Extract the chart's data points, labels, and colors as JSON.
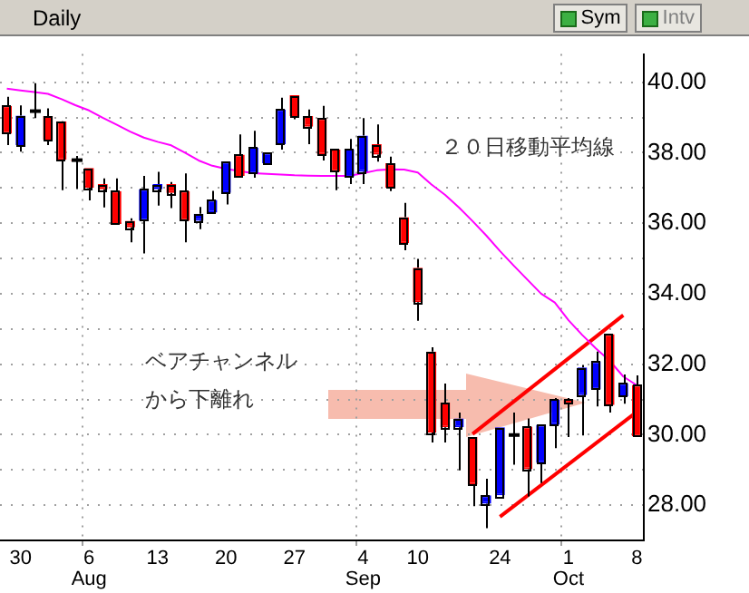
{
  "chart_data": {
    "type": "candlestick",
    "title": "Daily",
    "categories": [
      null,
      "30",
      null,
      null,
      null,
      null,
      "6\nAug",
      null,
      null,
      null,
      null,
      "13",
      null,
      null,
      null,
      null,
      "20",
      null,
      null,
      null,
      null,
      "27",
      null,
      null,
      null,
      null,
      "4\nSep",
      null,
      null,
      null,
      "10",
      null,
      null,
      null,
      null,
      null,
      "24",
      null,
      null,
      null,
      null,
      "1\nOct",
      null,
      null,
      null,
      null,
      "8"
    ],
    "ohlc": [
      [
        39.33,
        39.59,
        38.22,
        38.54
      ],
      [
        38.22,
        39.34,
        38.03,
        39.05
      ],
      [
        39.18,
        39.97,
        38.98,
        39.16
      ],
      [
        39.04,
        39.26,
        38.22,
        38.37
      ],
      [
        38.89,
        38.9,
        36.94,
        37.8
      ],
      [
        37.79,
        37.91,
        36.97,
        37.77
      ],
      [
        37.57,
        37.57,
        36.65,
        37.01
      ],
      [
        37.11,
        37.27,
        36.45,
        36.96
      ],
      [
        36.91,
        37.27,
        35.98,
        35.98
      ],
      [
        36.07,
        36.14,
        35.46,
        35.88
      ],
      [
        36.07,
        37.34,
        35.14,
        36.96
      ],
      [
        36.96,
        37.46,
        36.5,
        37.11
      ],
      [
        37.11,
        37.17,
        36.43,
        36.86
      ],
      [
        36.91,
        37.41,
        35.46,
        36.07
      ],
      [
        36.07,
        36.46,
        35.83,
        36.27
      ],
      [
        36.3,
        36.92,
        36.3,
        36.66
      ],
      [
        36.86,
        37.75,
        36.53,
        37.75
      ],
      [
        37.95,
        38.52,
        37.29,
        37.34
      ],
      [
        37.41,
        38.62,
        37.29,
        38.14
      ],
      [
        37.7,
        38.0,
        37.7,
        38.0
      ],
      [
        38.24,
        39.56,
        38.09,
        39.23
      ],
      [
        39.63,
        39.63,
        38.95,
        39.04
      ],
      [
        39.04,
        39.23,
        38.24,
        38.74
      ],
      [
        38.98,
        39.33,
        37.78,
        37.95
      ],
      [
        38.09,
        38.09,
        36.94,
        37.46
      ],
      [
        37.31,
        38.39,
        37.11,
        38.09
      ],
      [
        37.46,
        38.98,
        37.11,
        38.49
      ],
      [
        38.24,
        38.8,
        37.75,
        37.95
      ],
      [
        37.7,
        37.89,
        36.91,
        37.01
      ],
      [
        36.17,
        36.58,
        35.23,
        35.43
      ],
      [
        34.74,
        34.99,
        33.23,
        33.76
      ],
      [
        32.36,
        32.48,
        29.78,
        30.06
      ],
      [
        30.91,
        31.45,
        29.78,
        30.21
      ],
      [
        30.21,
        30.63,
        28.99,
        30.46
      ],
      [
        29.93,
        29.93,
        27.97,
        28.58
      ],
      [
        28.04,
        28.75,
        27.35,
        28.28
      ],
      [
        28.28,
        30.21,
        28.28,
        30.21
      ],
      [
        29.99,
        30.63,
        29.15,
        29.97
      ],
      [
        30.23,
        30.46,
        28.25,
        29.02
      ],
      [
        29.2,
        30.28,
        28.63,
        30.28
      ],
      [
        30.28,
        31.04,
        29.62,
        30.99
      ],
      [
        30.99,
        31.04,
        29.93,
        30.88
      ],
      [
        31.12,
        31.98,
        29.98,
        31.91
      ],
      [
        31.29,
        32.36,
        30.8,
        32.08
      ],
      [
        32.85,
        32.85,
        30.63,
        30.84
      ],
      [
        31.09,
        31.71,
        30.88,
        31.46
      ],
      [
        31.41,
        31.68,
        29.95,
        29.95
      ]
    ],
    "colors": [
      "#ff0000",
      "#0000ff",
      "#ff0000",
      "#ff0000",
      "#ff0000",
      "#ff0000",
      "#ff0000",
      "#ff0000",
      "#ff0000",
      "#ff0000",
      "#0000ff",
      "#0000ff",
      "#ff0000",
      "#ff0000",
      "#0000ff",
      "#0000ff",
      "#0000ff",
      "#ff0000",
      "#0000ff",
      "#0000ff",
      "#0000ff",
      "#ff0000",
      "#ff0000",
      "#ff0000",
      "#ff0000",
      "#0000ff",
      "#0000ff",
      "#ff0000",
      "#ff0000",
      "#ff0000",
      "#ff0000",
      "#ff0000",
      "#ff0000",
      "#0000ff",
      "#ff0000",
      "#0000ff",
      "#0000ff",
      "#ff0000",
      "#ff0000",
      "#0000ff",
      "#0000ff",
      "#ff0000",
      "#0000ff",
      "#0000ff",
      "#ff0000",
      "#0000ff",
      "#ff0000"
    ],
    "series": [
      {
        "type": "line",
        "color": "#ff00ff",
        "values": [
          39.82,
          39.77,
          39.72,
          39.67,
          39.52,
          39.35,
          39.2,
          38.99,
          38.8,
          38.6,
          38.43,
          38.31,
          38.21,
          38.0,
          37.78,
          37.63,
          37.54,
          37.48,
          37.42,
          37.4,
          37.38,
          37.36,
          37.35,
          37.34,
          37.34,
          37.34,
          37.42,
          37.5,
          37.53,
          37.52,
          37.44,
          37.1,
          36.8,
          36.45,
          36.06,
          35.65,
          35.21,
          34.8,
          34.4,
          34.0,
          33.75,
          33.25,
          32.83,
          32.45,
          32.1,
          31.65,
          31.4
        ]
      },
      {
        "type": "line",
        "color": "#ff0000",
        "values": [
          null,
          null,
          null,
          null,
          null,
          null,
          null,
          null,
          null,
          null,
          null,
          null,
          null,
          null,
          null,
          null,
          null,
          null,
          null,
          null,
          null,
          null,
          null,
          null,
          null,
          null,
          null,
          null,
          null,
          null,
          null,
          null,
          null,
          null,
          30.02,
          null,
          null,
          null,
          null,
          null,
          null,
          null,
          null,
          null,
          null,
          33.39,
          null
        ]
      },
      {
        "type": "line",
        "color": "#ff0000",
        "values": [
          null,
          null,
          null,
          null,
          null,
          null,
          null,
          null,
          null,
          null,
          null,
          null,
          null,
          null,
          null,
          null,
          null,
          null,
          null,
          null,
          null,
          null,
          null,
          null,
          null,
          null,
          null,
          null,
          null,
          null,
          null,
          null,
          null,
          null,
          null,
          null,
          27.67,
          null,
          null,
          null,
          null,
          null,
          null,
          null,
          null,
          null,
          30.65
        ]
      }
    ],
    "ylim": [
      27,
      40.8
    ],
    "yticks": [
      {
        "value": 28,
        "label": "28.00"
      },
      {
        "value": 29,
        "label": null
      },
      {
        "value": 30,
        "label": "30.00"
      },
      {
        "value": 31,
        "label": null
      },
      {
        "value": 32,
        "label": "32.00"
      },
      {
        "value": 33,
        "label": null
      },
      {
        "value": 34,
        "label": "34.00"
      },
      {
        "value": 35,
        "label": null
      },
      {
        "value": 36,
        "label": "36.00"
      },
      {
        "value": 37,
        "label": null
      },
      {
        "value": 38,
        "label": "38.00"
      },
      {
        "value": 39,
        "label": null
      },
      {
        "value": 40,
        "label": "40.00"
      }
    ],
    "grid": true,
    "legend": false,
    "marker": "none",
    "annotations": [
      "２０日移動平均線",
      "ベアチャンネル",
      "から下離れ",
      "Sym",
      "Intv"
    ]
  }
}
